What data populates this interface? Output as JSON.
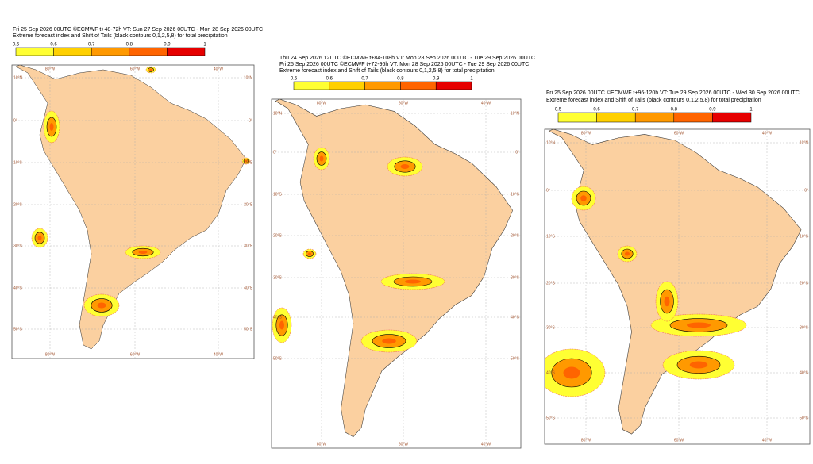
{
  "panels": [
    {
      "header": [
        "Fri 25 Sep 2026 00UTC ©ECMWF t+48-72h  VT: Sun 27 Sep 2026 00UTC - Mon 28 Sep 2026 00UTC",
        "Extreme forecast index and Shift of Tails (black contours 0,1,2,5,8) for total precipitation"
      ],
      "colorbar": [
        "0.5",
        "0.6",
        "0.7",
        "0.8",
        "0.9",
        "1"
      ],
      "lat": [
        "10°N",
        "0°",
        "10°S",
        "20°S",
        "30°S",
        "40°S",
        "50°S"
      ],
      "lon": [
        "80°W",
        "60°W",
        "40°W"
      ]
    },
    {
      "header": [
        "Thu 24 Sep 2026 12UTC ©ECMWF t+84-108h  VT: Mon 28 Sep 2026 00UTC - Tue 29 Sep 2026 00UTC",
        "Fri 25 Sep 2026 00UTC ©ECMWF t+72-96h  VT: Mon 28 Sep 2026 00UTC - Tue 29 Sep 2026 00UTC",
        "Extreme forecast index and Shift of Tails (black contours 0,1,2,5,8) for total precipitation"
      ],
      "colorbar": [
        "0.5",
        "0.6",
        "0.7",
        "0.8",
        "0.9",
        "1"
      ],
      "lat": [
        "10°N",
        "0°",
        "10°S",
        "20°S",
        "30°S",
        "40°S",
        "50°S"
      ],
      "lon": [
        "80°W",
        "60°W",
        "40°W"
      ]
    },
    {
      "header": [
        "Fri 25 Sep 2026 00UTC ©ECMWF t+96-120h  VT: Tue 29 Sep 2026 00UTC - Wed 30 Sep 2026 00UTC",
        "Extreme forecast index and Shift of Tails (black contours 0,1,2,5,8) for total precipitation"
      ],
      "colorbar": [
        "0.5",
        "0.6",
        "0.7",
        "0.8",
        "0.9",
        "1"
      ],
      "lat": [
        "10°N",
        "0°",
        "10°S",
        "20°S",
        "30°S",
        "40°S",
        "50°S"
      ],
      "lon": [
        "80°W",
        "60°W",
        "40°W"
      ]
    }
  ]
}
